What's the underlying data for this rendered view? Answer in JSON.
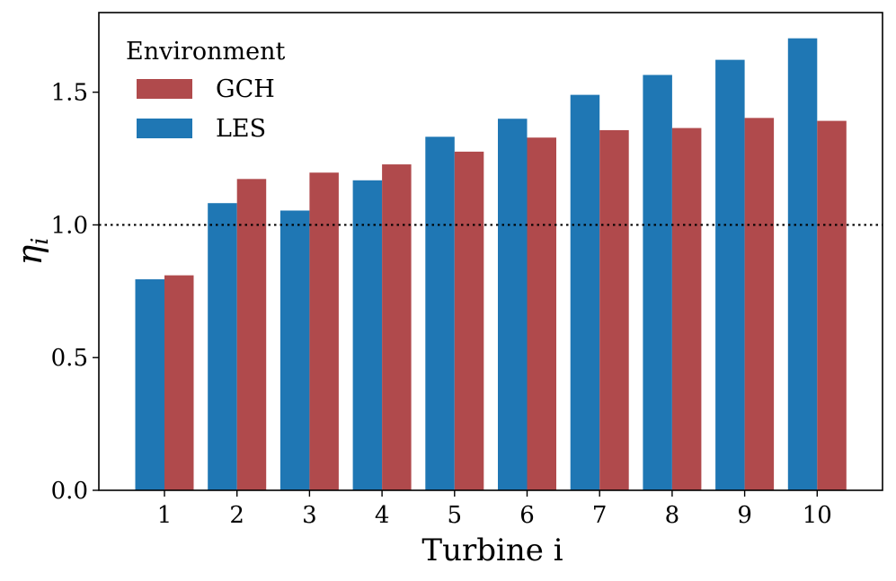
{
  "chart_data": {
    "type": "bar",
    "categories": [
      "1",
      "2",
      "3",
      "4",
      "5",
      "6",
      "7",
      "8",
      "9",
      "10"
    ],
    "series": [
      {
        "name": "LES",
        "color": "#1f77b4",
        "values": [
          0.795,
          1.082,
          1.054,
          1.168,
          1.332,
          1.4,
          1.49,
          1.565,
          1.622,
          1.703
        ]
      },
      {
        "name": "GCH",
        "color": "#b04a4c",
        "values": [
          0.81,
          1.173,
          1.197,
          1.228,
          1.276,
          1.329,
          1.357,
          1.365,
          1.403,
          1.392
        ]
      }
    ],
    "xlabel": "Turbine i",
    "ylabel": "η_i",
    "ylabel_main": "η",
    "ylabel_sub": "i",
    "ylim": [
      0,
      1.8
    ],
    "yticks": [
      {
        "value": 0.0,
        "label": "0.0"
      },
      {
        "value": 0.5,
        "label": "0.5"
      },
      {
        "value": 1.0,
        "label": "1.0"
      },
      {
        "value": 1.5,
        "label": "1.5"
      }
    ],
    "reference_line": {
      "y": 1.0,
      "style": "dotted",
      "color": "#000000"
    },
    "legend": {
      "title": "Environment",
      "position": "top-left",
      "entries": [
        {
          "name": "GCH",
          "color": "#b04a4c"
        },
        {
          "name": "LES",
          "color": "#1f77b4"
        }
      ]
    },
    "grid": false
  }
}
